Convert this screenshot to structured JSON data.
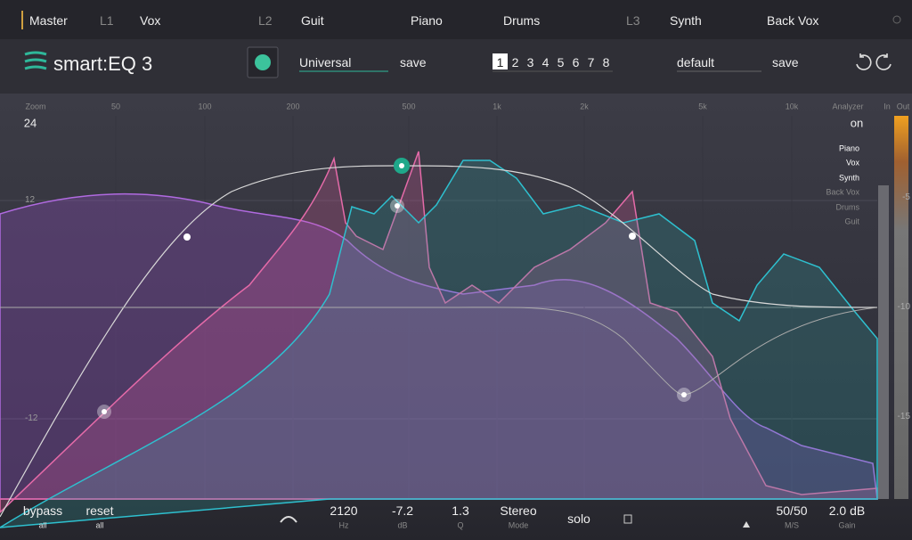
{
  "top_bar": {
    "master": "Master",
    "layers": [
      {
        "label": "L1",
        "tracks": [
          "Vox"
        ]
      },
      {
        "label": "L2",
        "tracks": [
          "Guit",
          "Piano",
          "Drums"
        ]
      },
      {
        "label": "L3",
        "tracks": [
          "Synth",
          "Back Vox"
        ]
      }
    ]
  },
  "header": {
    "logo": "smart:EQ 3",
    "profile": "Universal",
    "save": "save",
    "bands": [
      "1",
      "2",
      "3",
      "4",
      "5",
      "6",
      "7",
      "8"
    ],
    "preset": "default",
    "preset_save": "save"
  },
  "display": {
    "zoom_label": "Zoom",
    "zoom_value": "24",
    "freq_labels": [
      "50",
      "100",
      "200",
      "500",
      "1k",
      "2k",
      "5k",
      "10k"
    ],
    "analyzer_label": "Analyzer",
    "analyzer_value": "on",
    "meter_labels": [
      "In",
      "Out"
    ],
    "gain_labels": [
      "12",
      "-12"
    ],
    "meter_scale": [
      "-5",
      "-10",
      "-15"
    ],
    "legend": [
      "Piano",
      "Vox",
      "Synth",
      "Back Vox",
      "Drums",
      "Guit"
    ]
  },
  "footer": {
    "controls": [
      {
        "value": "bypass",
        "label": "all"
      },
      {
        "value": "reset",
        "label": "all"
      },
      {
        "value": "2120",
        "label": "Hz"
      },
      {
        "value": "-7.2",
        "label": "dB"
      },
      {
        "value": "1.3",
        "label": "Q"
      },
      {
        "value": "Stereo",
        "label": "Mode"
      },
      {
        "value": "50/50",
        "label": "M/S"
      },
      {
        "value": "2.0 dB",
        "label": "Gain"
      }
    ],
    "solo": "solo"
  }
}
